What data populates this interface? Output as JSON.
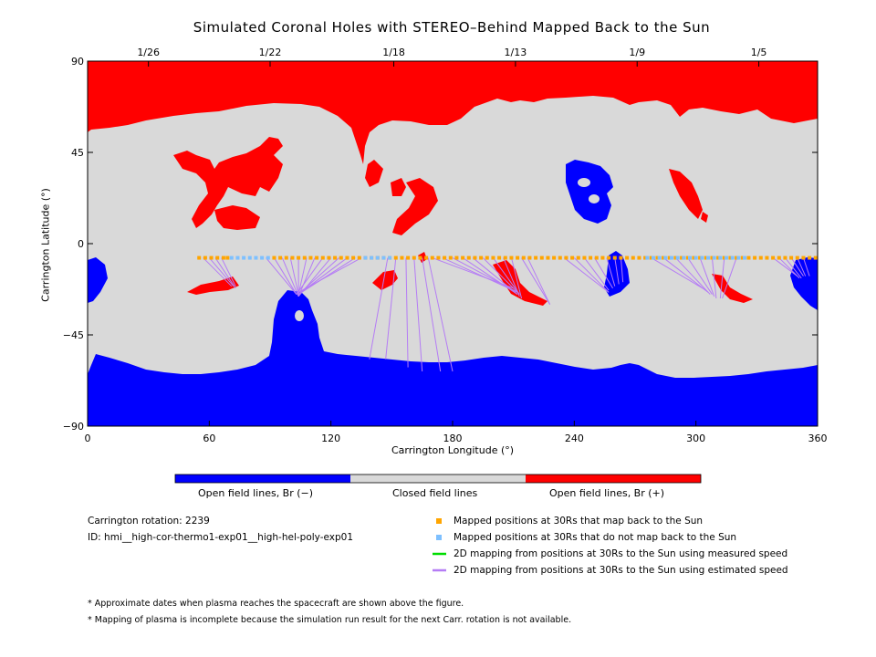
{
  "figure": {
    "title": "Simulated Coronal Holes with STEREO–Behind Mapped Back to the Sun"
  },
  "chart_data": {
    "type": "map",
    "title": "Simulated Coronal Holes with STEREO–Behind Mapped Back to the Sun",
    "xlabel": "Carrington Longitude (°)",
    "ylabel": "Carrington Latitude (°)",
    "xlim": [
      0,
      360
    ],
    "ylim": [
      -90,
      90
    ],
    "xticks": [
      0,
      60,
      120,
      180,
      240,
      300,
      360
    ],
    "yticks": [
      -90,
      -45,
      0,
      45,
      90
    ],
    "top_date_ticks": [
      {
        "label": "1/26",
        "lon": 30
      },
      {
        "label": "1/22",
        "lon": 90
      },
      {
        "label": "1/18",
        "lon": 151
      },
      {
        "label": "1/13",
        "lon": 211
      },
      {
        "label": "1/9",
        "lon": 271
      },
      {
        "label": "1/5",
        "lon": 331
      }
    ],
    "colors": {
      "open_negative": "#0000ff",
      "closed": "#d9d9d9",
      "open_positive": "#ff0000",
      "mapped": "#ffa500",
      "unmapped": "#7ec0ff",
      "measured": "#00dd00",
      "estimated": "#b57cf5"
    },
    "colorbar": [
      {
        "label": "Open field lines, Br (−)",
        "color": "#0000ff"
      },
      {
        "label": "Closed field lines",
        "color": "#d9d9d9"
      },
      {
        "label": "Open field lines, Br (+)",
        "color": "#ff0000"
      }
    ],
    "spacecraft_latitude": -7,
    "mapped_positions_lon": [
      55,
      58,
      61,
      64,
      67,
      69,
      92,
      95,
      98,
      101,
      104,
      107,
      110,
      113,
      116,
      119,
      122,
      125,
      128,
      131,
      134,
      137,
      140,
      143,
      146,
      149,
      152,
      155,
      158,
      161,
      164,
      167,
      170,
      173,
      176,
      179,
      182,
      185,
      188,
      191,
      194,
      197,
      200,
      203,
      206,
      209,
      212,
      215,
      218,
      221,
      224,
      227,
      230,
      233,
      236,
      239,
      242,
      245,
      248,
      251,
      254,
      257,
      260,
      263,
      266,
      269,
      272,
      275,
      278,
      281,
      284,
      287,
      290,
      293,
      296,
      299,
      302,
      305,
      308,
      311,
      314,
      317,
      320,
      323,
      326,
      329,
      332,
      335,
      338,
      341,
      344,
      347,
      350,
      353,
      356,
      359
    ],
    "unmapped_positions_lon": [
      71,
      74,
      77,
      80,
      83,
      86,
      89,
      137,
      140,
      143,
      146,
      149,
      276,
      279,
      282,
      285,
      288,
      291,
      294,
      297,
      300,
      303,
      306,
      309,
      312,
      315,
      318,
      321,
      324
    ],
    "mapping_lines_estimated": [
      [
        57,
        -7,
        71,
        -21
      ],
      [
        60,
        -7,
        72,
        -21
      ],
      [
        63,
        -7,
        73,
        -22
      ],
      [
        66,
        -7,
        73,
        -21
      ],
      [
        88,
        -7,
        103,
        -25
      ],
      [
        92,
        -7,
        103,
        -25
      ],
      [
        96,
        -7,
        104,
        -26
      ],
      [
        100,
        -7,
        104,
        -25
      ],
      [
        104,
        -7,
        104,
        -26
      ],
      [
        108,
        -7,
        104,
        -25
      ],
      [
        112,
        -7,
        104,
        -26
      ],
      [
        116,
        -7,
        103,
        -25
      ],
      [
        120,
        -7,
        104,
        -26
      ],
      [
        124,
        -7,
        104,
        -25
      ],
      [
        128,
        -7,
        104,
        -25
      ],
      [
        132,
        -7,
        104,
        -25
      ],
      [
        135,
        -7,
        104,
        -24
      ],
      [
        148,
        -7,
        139,
        -57
      ],
      [
        152,
        -7,
        147,
        -57
      ],
      [
        157,
        -7,
        158,
        -61
      ],
      [
        161,
        -7,
        165,
        -63
      ],
      [
        165,
        -7,
        174,
        -63
      ],
      [
        168,
        -7,
        180,
        -63
      ],
      [
        170,
        -7,
        210,
        -22
      ],
      [
        175,
        -7,
        212,
        -24
      ],
      [
        180,
        -7,
        212,
        -24
      ],
      [
        185,
        -7,
        212,
        -25
      ],
      [
        190,
        -7,
        212,
        -25
      ],
      [
        195,
        -7,
        213,
        -25
      ],
      [
        200,
        -7,
        213,
        -25
      ],
      [
        205,
        -7,
        213,
        -26
      ],
      [
        209,
        -7,
        214,
        -27
      ],
      [
        214,
        -7,
        228,
        -30
      ],
      [
        217,
        -7,
        228,
        -30
      ],
      [
        235,
        -7,
        257,
        -24
      ],
      [
        240,
        -7,
        257,
        -24
      ],
      [
        245,
        -7,
        257,
        -23
      ],
      [
        250,
        -7,
        259,
        -22
      ],
      [
        256,
        -7,
        260,
        -21
      ],
      [
        260,
        -7,
        262,
        -20
      ],
      [
        263,
        -7,
        264,
        -19
      ],
      [
        278,
        -7,
        305,
        -23
      ],
      [
        284,
        -7,
        306,
        -24
      ],
      [
        290,
        -7,
        307,
        -25
      ],
      [
        296,
        -7,
        308,
        -25
      ],
      [
        302,
        -7,
        309,
        -26
      ],
      [
        308,
        -7,
        310,
        -27
      ],
      [
        314,
        -7,
        312,
        -27
      ],
      [
        320,
        -7,
        313,
        -27
      ],
      [
        338,
        -7,
        350,
        -16
      ],
      [
        341,
        -7,
        351,
        -17
      ],
      [
        344,
        -7,
        352,
        -17
      ],
      [
        347,
        -7,
        353,
        -16
      ],
      [
        350,
        -7,
        354,
        -16
      ],
      [
        353,
        -7,
        356,
        -16
      ]
    ],
    "mapping_lines_measured": []
  },
  "legend": {
    "mapped": "Mapped positions at 30Rs that map back to the Sun",
    "unmapped": "Mapped positions at 30Rs that do not map back to the Sun",
    "measured": "2D mapping from positions at 30Rs to the Sun using measured speed",
    "estimated": "2D mapping from positions at 30Rs to the Sun using estimated speed"
  },
  "info": {
    "rotation": "Carrington rotation: 2239",
    "id": "ID: hmi__high-cor-thermo1-exp01__high-hel-poly-exp01"
  },
  "notes": {
    "note1": "* Approximate dates when plasma reaches the spacecraft are shown above the figure.",
    "note2": "* Mapping of plasma is incomplete because the simulation run result for the next Carr. rotation is not available."
  }
}
